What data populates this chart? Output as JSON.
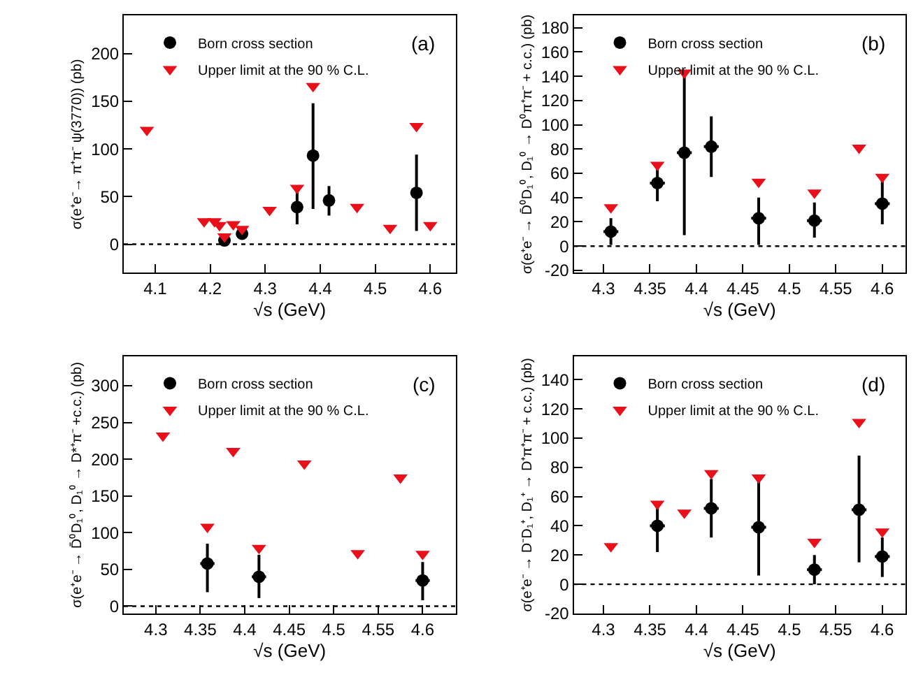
{
  "chart_data": [
    {
      "type": "scatter",
      "xlabel": "√s (GeV)",
      "ylabel": "σ(e⁺e⁻→ π⁺π⁻ ψ(3770)) (pb)",
      "annotations": [
        "(a)"
      ],
      "xlim": [
        4.043,
        4.646
      ],
      "ylim": [
        -30,
        240
      ],
      "xticks": [
        4.1,
        4.2,
        4.3,
        4.4,
        4.5,
        4.6
      ],
      "yticks": [
        0,
        50,
        100,
        150,
        200
      ],
      "legend": "top left",
      "ref_lines": [
        {
          "axis": "y",
          "value": 0,
          "color": "#000000",
          "line_style": "dotted"
        }
      ],
      "series": [
        {
          "name": "Born cross section",
          "color": "#000000",
          "marker": "circle",
          "x": [
            4.226,
            4.258,
            4.358,
            4.387,
            4.416,
            4.575
          ],
          "values": [
            4,
            11,
            39,
            93,
            46,
            54
          ],
          "errors": [
            [
              0,
              8
            ],
            [
              6,
              16
            ],
            [
              21,
              58
            ],
            [
              37,
              148
            ],
            [
              30,
              61
            ],
            [
              14,
              94
            ]
          ]
        },
        {
          "name": "Upper limit at the 90 % C.L.",
          "color": "#e8101a",
          "marker": "triangle",
          "x": [
            4.085,
            4.189,
            4.208,
            4.217,
            4.226,
            4.242,
            4.258,
            4.308,
            4.358,
            4.387,
            4.467,
            4.527,
            4.575,
            4.6
          ],
          "values": [
            120,
            24,
            24,
            20,
            8,
            21,
            16,
            36,
            59,
            166,
            39,
            17,
            124,
            20
          ]
        }
      ]
    },
    {
      "type": "scatter",
      "xlabel": "√s (GeV)",
      "ylabel": "σ(e⁺e⁻ → D̄⁰D₁⁰, D₁⁰ → D⁰π⁺π⁻ + c.c.) (pb)",
      "annotations": [
        "(b)"
      ],
      "xlim": [
        4.268,
        4.625
      ],
      "ylim": [
        -22,
        190
      ],
      "xticks": [
        4.3,
        4.35,
        4.4,
        4.45,
        4.5,
        4.55,
        4.6
      ],
      "yticks": [
        -20,
        0,
        20,
        40,
        60,
        80,
        100,
        120,
        140,
        160,
        180
      ],
      "legend": "top left",
      "ref_lines": [
        {
          "axis": "y",
          "value": 0,
          "color": "#000000",
          "line_style": "dotted"
        }
      ],
      "series": [
        {
          "name": "Born cross section",
          "color": "#000000",
          "marker": "circle",
          "x": [
            4.308,
            4.358,
            4.387,
            4.416,
            4.467,
            4.527,
            4.6
          ],
          "values": [
            12,
            52,
            77,
            82,
            23,
            21,
            35
          ],
          "errors": [
            [
              1,
              23
            ],
            [
              37,
              66
            ],
            [
              9,
              142
            ],
            [
              57,
              107
            ],
            [
              1,
              40
            ],
            [
              7,
              36
            ],
            [
              18,
              54
            ]
          ],
          "xerrors": [
            0.008,
            0.008,
            0.008,
            0.008,
            0.008,
            0.008,
            0.008
          ]
        },
        {
          "name": "Upper limit at the 90 % C.L.",
          "color": "#e8101a",
          "marker": "triangle",
          "x": [
            4.308,
            4.358,
            4.387,
            4.467,
            4.527,
            4.575,
            4.6
          ],
          "values": [
            32,
            67,
            143,
            53,
            44,
            81,
            57
          ]
        }
      ]
    },
    {
      "type": "scatter",
      "xlabel": "√s (GeV)",
      "ylabel": "σ(e⁺e⁻ → D̄⁰D₁⁰, D₁⁰ → D*⁺π⁻ +c.c.) (pb)",
      "annotations": [
        "(c)"
      ],
      "xlim": [
        4.264,
        4.637
      ],
      "ylim": [
        -10,
        340
      ],
      "xticks": [
        4.3,
        4.35,
        4.4,
        4.45,
        4.5,
        4.55,
        4.6
      ],
      "yticks": [
        0,
        50,
        100,
        150,
        200,
        250,
        300
      ],
      "legend": "top left",
      "ref_lines": [
        {
          "axis": "y",
          "value": 0,
          "color": "#000000",
          "line_style": "dotted"
        }
      ],
      "series": [
        {
          "name": "Born cross section",
          "color": "#000000",
          "marker": "circle",
          "x": [
            4.358,
            4.416,
            4.6
          ],
          "values": [
            58,
            40,
            35
          ],
          "errors": [
            [
              19,
              85
            ],
            [
              11,
              70
            ],
            [
              8,
              60
            ]
          ],
          "xerrors": [
            0.008,
            0.008,
            0.008
          ]
        },
        {
          "name": "Upper limit at the 90 % C.L.",
          "color": "#e8101a",
          "marker": "triangle",
          "x": [
            4.308,
            4.358,
            4.387,
            4.416,
            4.467,
            4.527,
            4.575,
            4.6
          ],
          "values": [
            232,
            108,
            211,
            79,
            194,
            72,
            175,
            71
          ]
        }
      ]
    },
    {
      "type": "scatter",
      "xlabel": "√s (GeV)",
      "ylabel": "σ(e⁺e⁻ → D⁻D₁⁺, D₁⁺ → D⁺π⁺π⁻ + c.c.) (pb)",
      "annotations": [
        "(d)"
      ],
      "xlim": [
        4.268,
        4.625
      ],
      "ylim": [
        -20,
        156
      ],
      "xticks": [
        4.3,
        4.35,
        4.4,
        4.45,
        4.5,
        4.55,
        4.6
      ],
      "yticks": [
        -20,
        0,
        20,
        40,
        60,
        80,
        100,
        120,
        140
      ],
      "legend": "top left",
      "ref_lines": [
        {
          "axis": "y",
          "value": 0,
          "color": "#000000",
          "line_style": "dotted"
        }
      ],
      "series": [
        {
          "name": "Born cross section",
          "color": "#000000",
          "marker": "circle",
          "x": [
            4.358,
            4.416,
            4.467,
            4.527,
            4.575,
            4.6
          ],
          "values": [
            40,
            52,
            39,
            10,
            51,
            19
          ],
          "errors": [
            [
              22,
              55
            ],
            [
              32,
              72
            ],
            [
              6,
              73
            ],
            [
              0,
              20
            ],
            [
              15,
              88
            ],
            [
              5,
              32
            ]
          ],
          "xerrors": [
            0.008,
            0.008,
            0.008,
            0.008,
            0.008,
            0.008
          ]
        },
        {
          "name": "Upper limit at the 90 % C.L.",
          "color": "#e8101a",
          "marker": "triangle",
          "x": [
            4.308,
            4.358,
            4.387,
            4.416,
            4.467,
            4.527,
            4.575,
            4.6
          ],
          "values": [
            26,
            55,
            49,
            76,
            73,
            29,
            111,
            36
          ]
        }
      ]
    }
  ]
}
